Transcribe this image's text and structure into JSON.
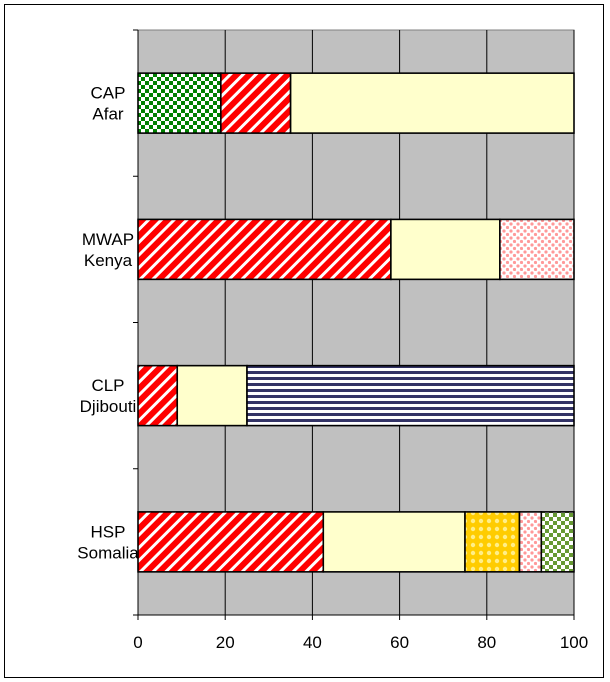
{
  "chart_data": {
    "type": "bar",
    "orientation": "horizontal",
    "stacked": true,
    "categories": [
      [
        "CAP",
        "Afar"
      ],
      [
        "MWAP",
        "Kenya"
      ],
      [
        "CLP",
        "Djibouti"
      ],
      [
        "HSP",
        "Somalia"
      ]
    ],
    "segments": [
      [
        {
          "value": 19,
          "pattern": "checker-green"
        },
        {
          "value": 16,
          "pattern": "diag-red"
        },
        {
          "value": 65,
          "pattern": "solid-cream"
        }
      ],
      [
        {
          "value": 58,
          "pattern": "diag-red"
        },
        {
          "value": 25,
          "pattern": "solid-cream"
        },
        {
          "value": 17,
          "pattern": "dots-pink"
        }
      ],
      [
        {
          "value": 9,
          "pattern": "diag-red"
        },
        {
          "value": 16,
          "pattern": "solid-cream"
        },
        {
          "value": 75,
          "pattern": "stripes-navy"
        }
      ],
      [
        {
          "value": 42.5,
          "pattern": "diag-red"
        },
        {
          "value": 32.5,
          "pattern": "solid-cream"
        },
        {
          "value": 12.5,
          "pattern": "circles-gold"
        },
        {
          "value": 5,
          "pattern": "dots-pink"
        },
        {
          "value": 7.5,
          "pattern": "checker-olive"
        }
      ]
    ],
    "xlim": [
      0,
      100
    ],
    "x_ticks": [
      0,
      20,
      40,
      60,
      80,
      100
    ],
    "grid": true,
    "legend": "none",
    "colors": {
      "plot_bg": "#c0c0c0",
      "red": "#ff0000",
      "cream": "#ffffcc",
      "green": "#008000",
      "navy": "#333366",
      "pink": "#ff9999",
      "gold": "#ffcc00",
      "olive": "#669933"
    }
  }
}
